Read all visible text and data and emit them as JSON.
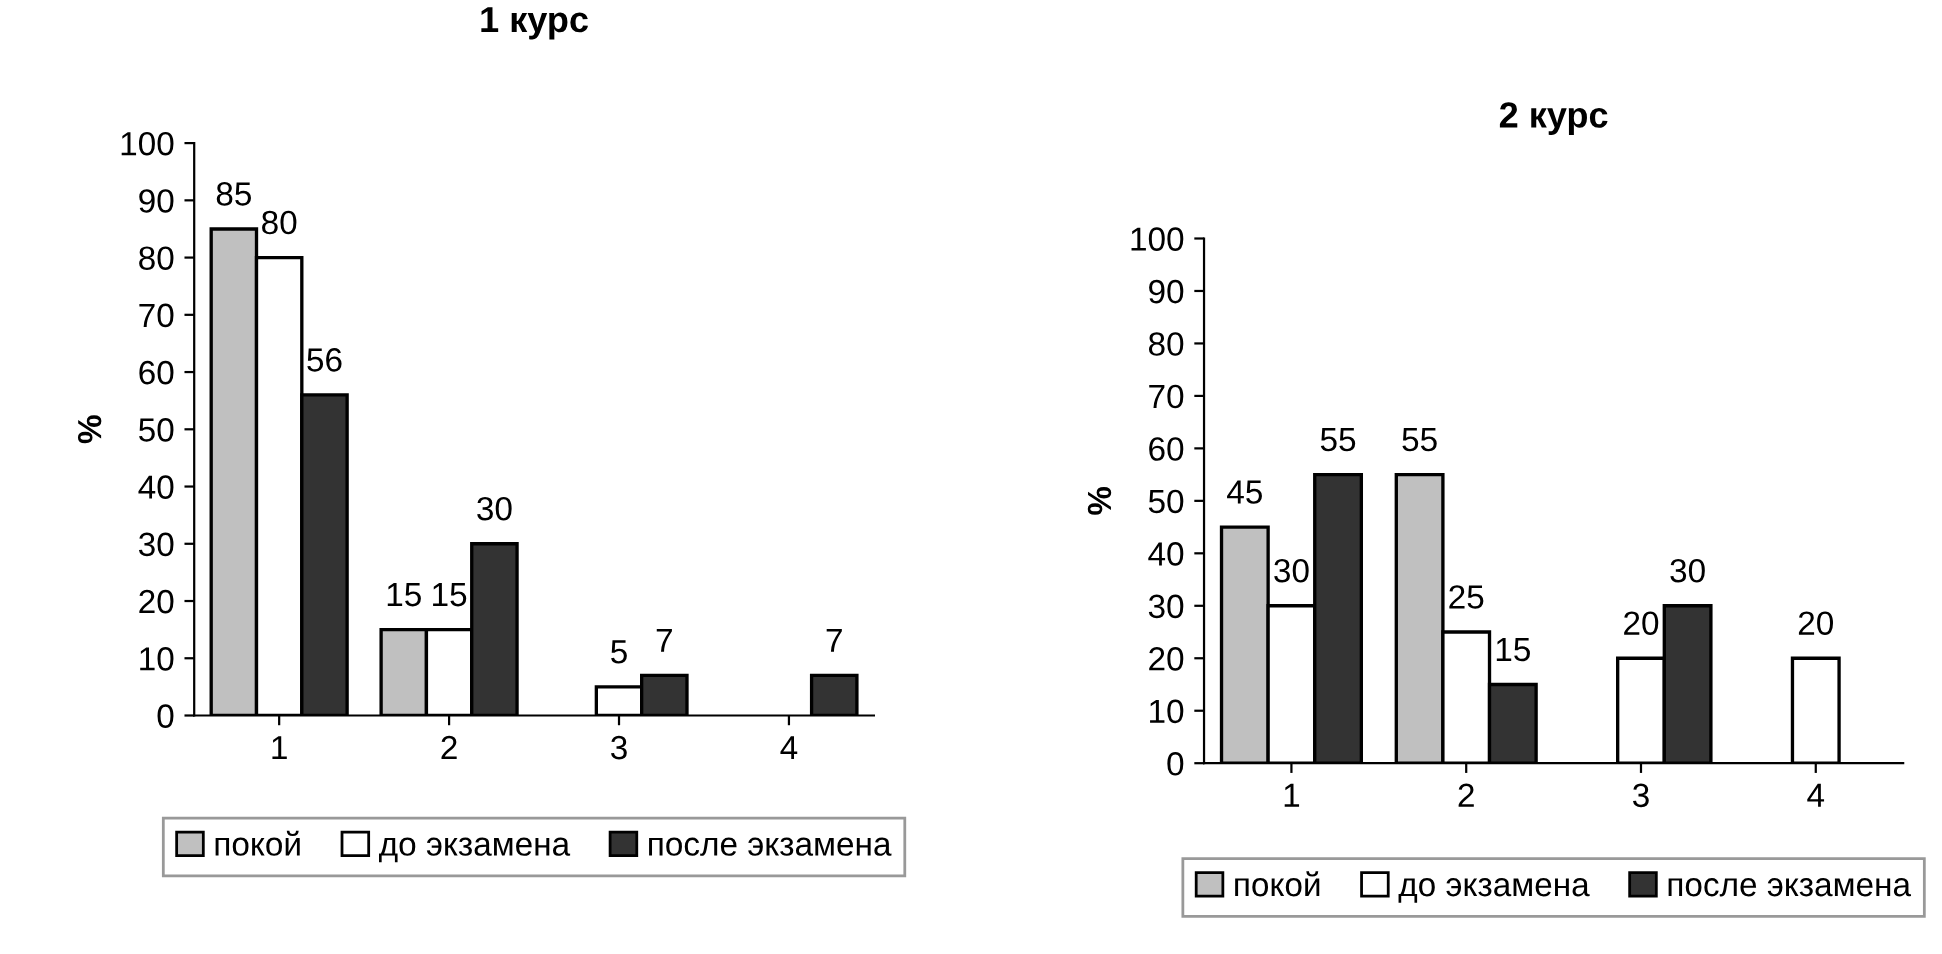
{
  "chart_data": [
    {
      "type": "bar",
      "title": "1 курс",
      "ylabel": "%",
      "categories": [
        "1",
        "2",
        "3",
        "4"
      ],
      "ylim": [
        0,
        100
      ],
      "yticks": [
        0,
        10,
        20,
        30,
        40,
        50,
        60,
        70,
        80,
        90,
        100
      ],
      "data_labels": true,
      "legend": "bottom",
      "grid": false,
      "series": [
        {
          "name": "покой",
          "color": "#c0c0c0",
          "values": [
            85,
            15,
            null,
            null
          ]
        },
        {
          "name": "до экзамена",
          "color": "#ffffff",
          "values": [
            80,
            15,
            5,
            null
          ]
        },
        {
          "name": "после экзамена",
          "color": "#333333",
          "values": [
            56,
            30,
            7,
            7
          ]
        }
      ]
    },
    {
      "type": "bar",
      "title": "2 курс",
      "ylabel": "%",
      "categories": [
        "1",
        "2",
        "3",
        "4"
      ],
      "ylim": [
        0,
        100
      ],
      "yticks": [
        0,
        10,
        20,
        30,
        40,
        50,
        60,
        70,
        80,
        90,
        100
      ],
      "data_labels": true,
      "legend": "bottom",
      "grid": false,
      "series": [
        {
          "name": "покой",
          "color": "#c0c0c0",
          "values": [
            45,
            55,
            null,
            null
          ]
        },
        {
          "name": "до экзамена",
          "color": "#ffffff",
          "values": [
            30,
            25,
            20,
            20
          ]
        },
        {
          "name": "после экзамена",
          "color": "#333333",
          "values": [
            55,
            15,
            30,
            null
          ]
        }
      ]
    }
  ]
}
